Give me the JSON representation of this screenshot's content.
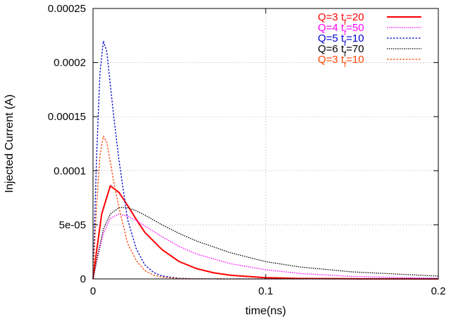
{
  "chart_data": {
    "type": "line",
    "title": "",
    "xlabel": "time(ns)",
    "ylabel": "Injected Current (A)",
    "xlim": [
      0,
      0.2
    ],
    "ylim": [
      0,
      0.00025
    ],
    "xticks": [
      0,
      0.1,
      0.2
    ],
    "xtick_labels": [
      "0",
      "0.1",
      "0.2"
    ],
    "yticks": [
      0,
      5e-05,
      0.0001,
      0.00015,
      0.0002,
      0.00025
    ],
    "ytick_labels": [
      "0",
      "5e-05",
      "0.0001",
      "0.00015",
      "0.0002",
      "0.00025"
    ],
    "grid": true,
    "legend_position": "top-right",
    "series": [
      {
        "name": "Q=3 t_f=20",
        "q_label": "Q=3",
        "t_label": "t",
        "t_sub": "f",
        "t_value": "=20",
        "color": "#ff0000",
        "style": "solid",
        "x": [
          0,
          0.002,
          0.005,
          0.01,
          0.015,
          0.02,
          0.025,
          0.03,
          0.04,
          0.05,
          0.06,
          0.07,
          0.08,
          0.1,
          0.12,
          0.15,
          0.2
        ],
        "y": [
          0,
          2.5e-05,
          6e-05,
          8.6e-05,
          8e-05,
          6.8e-05,
          5.5e-05,
          4.3e-05,
          2.7e-05,
          1.6e-05,
          9.5e-06,
          5.6e-06,
          3.3e-06,
          1.2e-06,
          4e-07,
          1e-07,
          0
        ]
      },
      {
        "name": "Q=4 t_f=50",
        "q_label": "Q=4",
        "t_label": "t",
        "t_sub": "f",
        "t_value": "=50",
        "color": "#ff00ff",
        "style": "dotted",
        "x": [
          0,
          0.003,
          0.006,
          0.01,
          0.015,
          0.02,
          0.025,
          0.03,
          0.04,
          0.05,
          0.06,
          0.08,
          0.1,
          0.12,
          0.15,
          0.2
        ],
        "y": [
          0,
          2.2e-05,
          4.2e-05,
          5.6e-05,
          6e-05,
          5.8e-05,
          5.4e-05,
          4.9e-05,
          3.9e-05,
          3e-05,
          2.3e-05,
          1.4e-05,
          8.5e-06,
          5e-06,
          2.3e-06,
          5e-07
        ]
      },
      {
        "name": "Q=5 t_f=10",
        "q_label": "Q=5",
        "t_label": "t",
        "t_sub": "f",
        "t_value": "=10",
        "color": "#0000cc",
        "style": "dashed",
        "x": [
          0,
          0.002,
          0.004,
          0.006,
          0.008,
          0.01,
          0.012,
          0.015,
          0.02,
          0.025,
          0.03,
          0.035,
          0.04,
          0.05,
          0.06,
          0.08,
          0.1,
          0.2
        ],
        "y": [
          0,
          0.00011,
          0.00019,
          0.00022,
          0.00021,
          0.00018,
          0.00015,
          0.00011,
          5.5e-05,
          2.8e-05,
          1.3e-05,
          6e-06,
          2.7e-06,
          6e-07,
          1e-07,
          0,
          0,
          0
        ]
      },
      {
        "name": "Q=6 t_f=70",
        "q_label": "Q=6",
        "t_label": "t",
        "t_sub": "f",
        "t_value": "=70",
        "color": "#000000",
        "style": "dotted",
        "x": [
          0,
          0.003,
          0.006,
          0.01,
          0.015,
          0.02,
          0.025,
          0.03,
          0.04,
          0.05,
          0.06,
          0.08,
          0.1,
          0.12,
          0.15,
          0.2
        ],
        "y": [
          0,
          2.4e-05,
          4.6e-05,
          6e-05,
          6.6e-05,
          6.6e-05,
          6.3e-05,
          5.9e-05,
          5e-05,
          4.2e-05,
          3.5e-05,
          2.4e-05,
          1.6e-05,
          1.1e-05,
          6.5e-06,
          2.6e-06
        ]
      },
      {
        "name": "Q=3 t_f=10",
        "q_label": "Q=3",
        "t_label": "t",
        "t_sub": "f",
        "t_value": "=10",
        "color": "#ff4400",
        "style": "dashed",
        "x": [
          0,
          0.002,
          0.004,
          0.006,
          0.008,
          0.01,
          0.012,
          0.015,
          0.02,
          0.025,
          0.03,
          0.035,
          0.04,
          0.05,
          0.06,
          0.08,
          0.1,
          0.2
        ],
        "y": [
          0,
          6.6e-05,
          0.000114,
          0.000132,
          0.000126,
          0.000108,
          9e-05,
          6.6e-05,
          3.3e-05,
          1.7e-05,
          7.8e-06,
          3.6e-06,
          1.6e-06,
          4e-07,
          1e-07,
          0,
          0,
          0
        ]
      }
    ]
  }
}
